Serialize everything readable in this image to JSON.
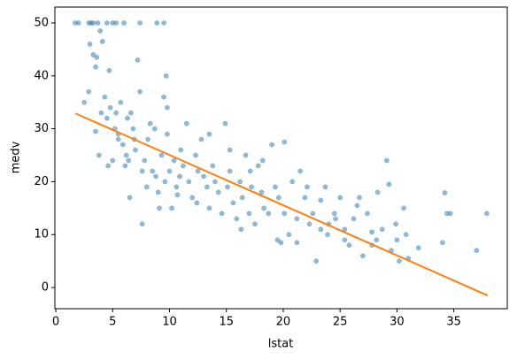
{
  "chart_data": {
    "type": "scatter",
    "xlabel": "lstat",
    "ylabel": "medv",
    "xlim": [
      -0.08,
      39.7
    ],
    "ylim": [
      -4,
      53
    ],
    "xticks": [
      0,
      5,
      10,
      15,
      20,
      25,
      30,
      35
    ],
    "yticks": [
      0,
      10,
      20,
      30,
      40,
      50
    ],
    "points": {
      "color": "#1f77b4",
      "x": [
        1.7,
        2.0,
        2.9,
        3.1,
        3.3,
        3.7,
        4.5,
        5.0,
        5.3,
        6.0,
        7.4,
        8.9,
        9.5,
        2.5,
        2.9,
        3.0,
        3.3,
        3.5,
        3.6,
        3.9,
        4.1,
        4.3,
        4.7,
        4.5,
        4.0,
        3.5,
        3.8,
        4.6,
        5.0,
        5.2,
        5.5,
        5.7,
        5.9,
        6.1,
        6.2,
        6.4,
        6.6,
        6.8,
        7.0,
        7.2,
        7.4,
        7.6,
        7.8,
        8.0,
        8.1,
        8.3,
        8.5,
        8.8,
        9.0,
        9.3,
        9.5,
        9.6,
        9.8,
        10.0,
        10.2,
        10.4,
        10.6,
        10.9,
        11.2,
        11.5,
        11.7,
        12.0,
        12.3,
        12.5,
        12.8,
        13.0,
        13.3,
        13.5,
        13.8,
        14.0,
        14.3,
        14.6,
        14.9,
        15.1,
        15.3,
        15.6,
        15.9,
        16.2,
        16.4,
        16.7,
        17.0,
        17.2,
        17.5,
        17.8,
        18.1,
        18.3,
        18.7,
        19.0,
        19.3,
        19.6,
        19.8,
        20.1,
        20.5,
        20.8,
        21.2,
        21.5,
        21.9,
        22.3,
        22.6,
        22.9,
        23.3,
        23.7,
        24.0,
        24.5,
        25.0,
        25.4,
        25.8,
        26.2,
        26.7,
        27.0,
        27.4,
        27.8,
        28.3,
        28.7,
        29.1,
        29.5,
        29.9,
        30.2,
        30.6,
        30.8,
        31.9,
        34.0,
        34.4,
        34.7,
        37.0,
        37.9,
        34.2,
        29.3,
        26.5,
        23.3,
        24.6,
        22.1,
        27.8,
        6.5,
        7.6,
        9.1,
        10.7,
        12.4,
        5.3,
        6.3,
        4.8,
        5.5,
        6.9,
        8.7,
        9.8,
        9.7,
        11.0,
        13.5,
        15.3,
        17.1,
        18.2,
        20.1,
        16.3,
        19.5,
        21.2,
        23.9,
        25.4,
        28.2,
        30.0,
        31.0
      ],
      "y": [
        50,
        50,
        50,
        50,
        50,
        50,
        50,
        50,
        50,
        50,
        50,
        50,
        50,
        35,
        37,
        46,
        44,
        41.7,
        43.5,
        48.5,
        46.5,
        36,
        41,
        32,
        33,
        29.5,
        25,
        23,
        24,
        30,
        28,
        35,
        27,
        23,
        25,
        24,
        33,
        30,
        26,
        43,
        37,
        22,
        24,
        19,
        28,
        31,
        22,
        21,
        18,
        25,
        36,
        20,
        29,
        22,
        15,
        24,
        19,
        21,
        23,
        31,
        20,
        17,
        25,
        22,
        28,
        21,
        19,
        15,
        23,
        20,
        18,
        14,
        31,
        19,
        22,
        16,
        13,
        20,
        17,
        25,
        14,
        19,
        12,
        23,
        18,
        15,
        14,
        27,
        19,
        17,
        8.5,
        14,
        10,
        20,
        13,
        22,
        17,
        12,
        14,
        5,
        11,
        19,
        12,
        14,
        17,
        11,
        8,
        13,
        17,
        6,
        14,
        8,
        18,
        11,
        24,
        7,
        12,
        5,
        15,
        10,
        7.5,
        8.5,
        14,
        14,
        7,
        14,
        17.9,
        19.5,
        15.5,
        16.5,
        13,
        19,
        10.5,
        17,
        12,
        15,
        17.5,
        16,
        33,
        32,
        34,
        29,
        28,
        30,
        34,
        40,
        26,
        29,
        26,
        22,
        24,
        27.5,
        11,
        9,
        8.5,
        10,
        9,
        9,
        9,
        5.5
      ]
    },
    "fit_line": {
      "color": "#ff7f0e",
      "x": [
        1.73,
        37.97
      ],
      "y": [
        32.9,
        -1.5
      ]
    }
  }
}
